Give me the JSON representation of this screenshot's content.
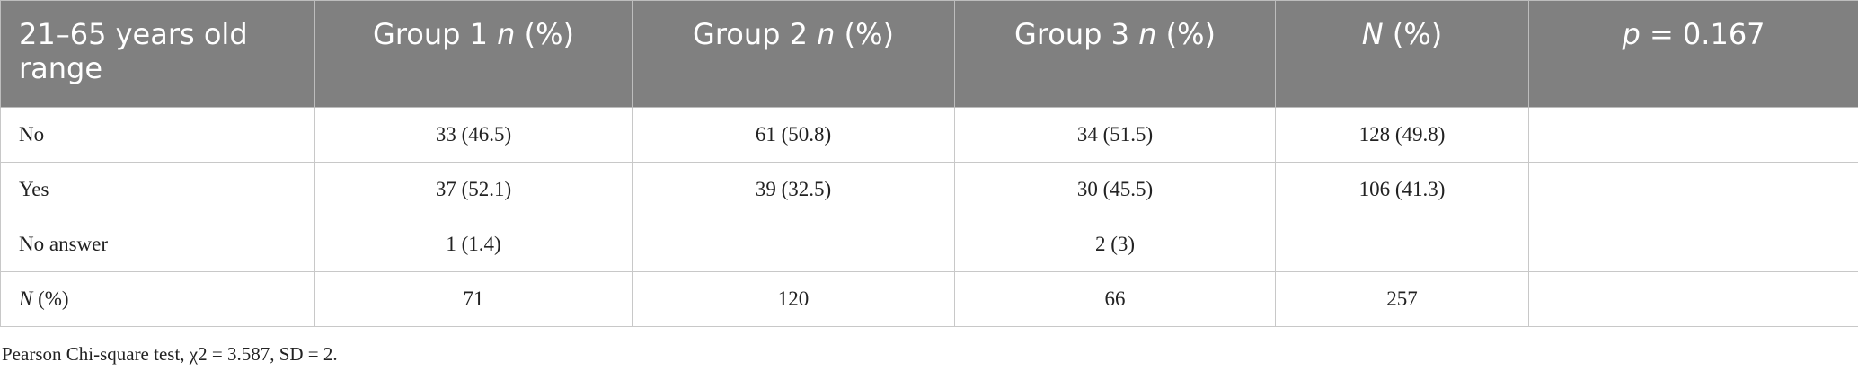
{
  "table": {
    "header": [
      [
        {
          "text": "21–65 years old range"
        }
      ],
      [
        {
          "text": "Group 1 "
        },
        {
          "text": "n",
          "italic": true
        },
        {
          "text": " (%)"
        }
      ],
      [
        {
          "text": "Group 2 "
        },
        {
          "text": "n",
          "italic": true
        },
        {
          "text": " (%)"
        }
      ],
      [
        {
          "text": "Group 3 "
        },
        {
          "text": "n",
          "italic": true
        },
        {
          "text": " (%)"
        }
      ],
      [
        {
          "text": "N",
          "italic": true
        },
        {
          "text": " (%)"
        }
      ],
      [
        {
          "text": "p",
          "italic": true
        },
        {
          "text": " = 0.167"
        }
      ]
    ],
    "rows": [
      [
        [
          {
            "text": "No"
          }
        ],
        "33 (46.5)",
        "61 (50.8)",
        "34 (51.5)",
        "128 (49.8)",
        null
      ],
      [
        [
          {
            "text": "Yes"
          }
        ],
        "37 (52.1)",
        "39 (32.5)",
        "30 (45.5)",
        "106 (41.3)",
        null
      ],
      [
        [
          {
            "text": "No answer"
          }
        ],
        "1 (1.4)",
        null,
        "2 (3)",
        null,
        null
      ],
      [
        [
          {
            "text": "N",
            "italic": true
          },
          {
            "text": " (%)"
          }
        ],
        "71",
        "120",
        "66",
        "257",
        null
      ]
    ]
  },
  "footnote": "Pearson Chi-square test, χ2 = 3.587, SD = 2."
}
